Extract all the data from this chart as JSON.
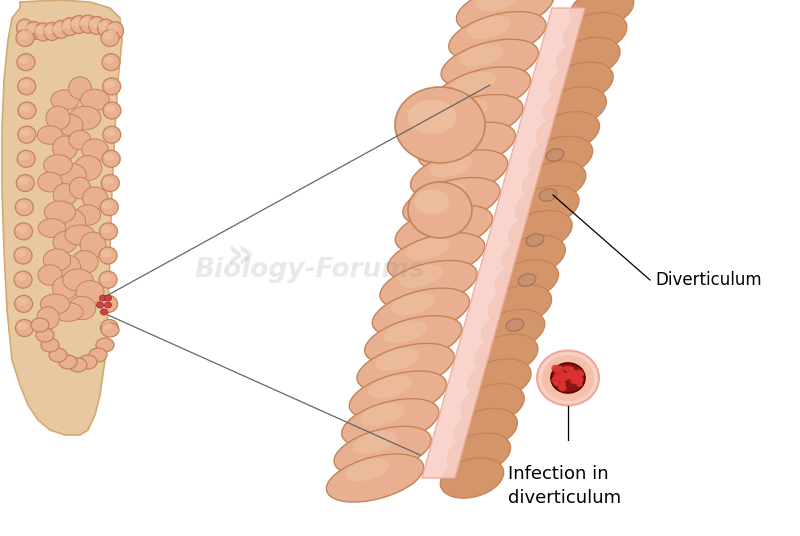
{
  "bg_color": "#ffffff",
  "skin_color": "#E8C8A0",
  "skin_edge_color": "#D4A870",
  "colon_outer": "#D4956A",
  "colon_mid": "#C4845A",
  "colon_light": "#E8B090",
  "colon_highlight": "#F0C8A8",
  "pink_lining": "#F0A898",
  "pink_lining_light": "#F8D0C8",
  "inner_mucosa": "#D4956A",
  "inner_mucosa_dark": "#C07858",
  "infection_dark": "#8B1515",
  "infection_red": "#CC2222",
  "infection_bright": "#DD3333",
  "small_divert_fill": "#C89070",
  "small_divert_edge": "#A87050",
  "label_font_size": 12,
  "watermark_text": "Biology-Forums",
  "watermark_alpha": 0.18,
  "line_color": "#666666",
  "label_diverticulum": "Diverticulum",
  "label_infection": "Infection in\ndiverticulum"
}
